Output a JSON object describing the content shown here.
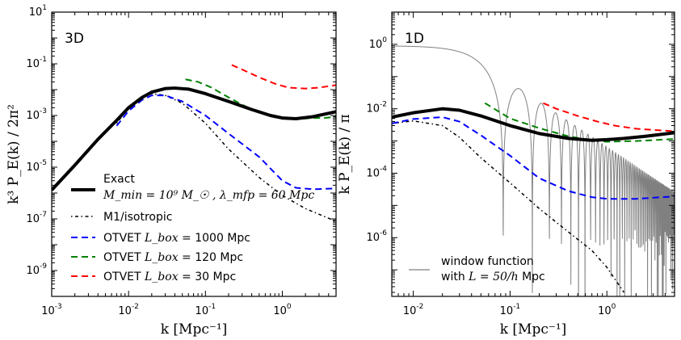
{
  "chart_data": [
    {
      "panel": "left",
      "type": "line",
      "panel_label": "3D",
      "xscale": "log",
      "yscale": "log",
      "xlim": [
        0.001,
        5
      ],
      "ylim": [
        1e-10,
        10
      ],
      "xlabel": "k [Mpc⁻¹]",
      "ylabel": "k³ P_E(k) / 2π²",
      "xticks": [
        {
          "v": 0.001,
          "b": "10",
          "e": "-3"
        },
        {
          "v": 0.01,
          "b": "10",
          "e": "-2"
        },
        {
          "v": 0.1,
          "b": "10",
          "e": "-1"
        },
        {
          "v": 1,
          "b": "10",
          "e": "0"
        }
      ],
      "yticks": [
        {
          "v": 1e-09,
          "b": "10",
          "e": "-9"
        },
        {
          "v": 1e-07,
          "b": "10",
          "e": "-7"
        },
        {
          "v": 1e-05,
          "b": "10",
          "e": "-5"
        },
        {
          "v": 0.001,
          "b": "10",
          "e": "-3"
        },
        {
          "v": 0.1,
          "b": "10",
          "e": "-1"
        },
        {
          "v": 10,
          "b": "10",
          "e": "1"
        }
      ],
      "series": [
        {
          "name": "Exact",
          "color": "#000000",
          "dash": "",
          "width": 4,
          "x": [
            0.001,
            0.002,
            0.004,
            0.007,
            0.01,
            0.015,
            0.02,
            0.03,
            0.04,
            0.06,
            0.1,
            0.2,
            0.4,
            0.7,
            1.0,
            1.5,
            2.5,
            5.0
          ],
          "y": [
            1.3e-06,
            1.2e-05,
            0.00012,
            0.00065,
            0.002,
            0.005,
            0.008,
            0.011,
            0.0115,
            0.0105,
            0.007,
            0.0035,
            0.0017,
            0.001,
            0.0008,
            0.00075,
            0.0009,
            0.0014
          ]
        },
        {
          "name": "M1/isotropic",
          "color": "#000000",
          "dash": "1.5,3.5,4,3.5",
          "width": 1.5,
          "x": [
            0.007,
            0.01,
            0.015,
            0.02,
            0.03,
            0.05,
            0.1,
            0.2,
            0.5,
            1.0,
            2.0,
            5.0
          ],
          "y": [
            0.0005,
            0.002,
            0.005,
            0.007,
            0.006,
            0.003,
            0.0005,
            5e-05,
            4e-06,
            8e-07,
            2.5e-07,
            8e-08
          ]
        },
        {
          "name": "OTVET L_box = 1000 Mpc",
          "color": "#0000ff",
          "dash": "8,5",
          "width": 2,
          "x": [
            0.007,
            0.01,
            0.015,
            0.02,
            0.03,
            0.05,
            0.1,
            0.2,
            0.5,
            1.0,
            1.5,
            2.5,
            5.0
          ],
          "y": [
            0.0004,
            0.0015,
            0.004,
            0.006,
            0.006,
            0.0035,
            0.001,
            0.0002,
            2.5e-05,
            3e-06,
            1.6e-06,
            1.4e-06,
            1.5e-06
          ]
        },
        {
          "name": "OTVET L_box = 120 Mpc",
          "color": "#008000",
          "dash": "8,5",
          "width": 2,
          "x": [
            0.055,
            0.08,
            0.12,
            0.2,
            0.3,
            0.5,
            0.8,
            1.2,
            1.8,
            2.5,
            3.5,
            5.0
          ],
          "y": [
            0.025,
            0.02,
            0.012,
            0.005,
            0.0026,
            0.0013,
            0.00085,
            0.00075,
            0.00075,
            0.0008,
            0.0008,
            0.0009
          ]
        },
        {
          "name": "OTVET L_box = 30 Mpc",
          "color": "#ff0000",
          "dash": "8,5",
          "width": 2,
          "x": [
            0.22,
            0.3,
            0.5,
            0.8,
            1.2,
            2.0,
            3.0,
            5.0
          ],
          "y": [
            0.09,
            0.06,
            0.03,
            0.017,
            0.012,
            0.011,
            0.012,
            0.015
          ]
        }
      ]
    },
    {
      "panel": "right",
      "type": "line",
      "panel_label": "1D",
      "xscale": "log",
      "yscale": "log",
      "xlim": [
        0.006,
        5
      ],
      "ylim": [
        1.5e-08,
        10
      ],
      "xlabel": "k [Mpc⁻¹]",
      "ylabel": "k P_E(k) / π",
      "xticks": [
        {
          "v": 0.01,
          "b": "10",
          "e": "-2"
        },
        {
          "v": 0.1,
          "b": "10",
          "e": "-1"
        },
        {
          "v": 1,
          "b": "10",
          "e": "0"
        }
      ],
      "yticks": [
        {
          "v": 1e-06,
          "b": "10",
          "e": "-6"
        },
        {
          "v": 0.0001,
          "b": "10",
          "e": "-4"
        },
        {
          "v": 0.01,
          "b": "10",
          "e": "-2"
        },
        {
          "v": 1,
          "b": "10",
          "e": "0"
        }
      ],
      "window_function": {
        "name": "window function with L = 50/h Mpc",
        "color": "#808080",
        "A": 0.9,
        "L": 74,
        "kmin": 0.006,
        "kmax": 5
      },
      "series": [
        {
          "name": "Exact",
          "color": "#000000",
          "dash": "",
          "width": 4,
          "x": [
            0.006,
            0.01,
            0.02,
            0.03,
            0.05,
            0.1,
            0.2,
            0.4,
            0.7,
            1.0,
            1.5,
            2.5,
            5.0
          ],
          "y": [
            0.0055,
            0.0075,
            0.01,
            0.009,
            0.006,
            0.003,
            0.0017,
            0.0012,
            0.00105,
            0.0011,
            0.0012,
            0.0014,
            0.0018
          ]
        },
        {
          "name": "M1/isotropic",
          "color": "#000000",
          "dash": "1.5,3.5,4,3.5",
          "width": 1.5,
          "x": [
            0.006,
            0.01,
            0.02,
            0.03,
            0.05,
            0.1,
            0.2,
            0.4,
            0.7,
            1.0,
            1.5
          ],
          "y": [
            0.0035,
            0.0042,
            0.003,
            0.0013,
            0.0003,
            5e-05,
            8e-06,
            1.5e-06,
            4e-07,
            1.2e-07,
            2e-08
          ]
        },
        {
          "name": "OTVET L_box = 1000 Mpc",
          "color": "#0000ff",
          "dash": "8,5",
          "width": 2,
          "x": [
            0.006,
            0.01,
            0.02,
            0.03,
            0.05,
            0.1,
            0.2,
            0.4,
            0.7,
            1.0,
            2.0,
            5.0
          ],
          "y": [
            0.0035,
            0.0048,
            0.0055,
            0.004,
            0.0015,
            0.00035,
            7e-05,
            2.8e-05,
            1.8e-05,
            1.6e-05,
            1.6e-05,
            1.9e-05
          ]
        },
        {
          "name": "OTVET L_box = 120 Mpc",
          "color": "#008000",
          "dash": "8,5",
          "width": 2,
          "x": [
            0.055,
            0.1,
            0.2,
            0.4,
            0.7,
            1.0,
            2.0,
            5.0
          ],
          "y": [
            0.015,
            0.005,
            0.0025,
            0.0014,
            0.00105,
            0.00095,
            0.001,
            0.00115
          ]
        },
        {
          "name": "OTVET L_box = 30 Mpc",
          "color": "#ff0000",
          "dash": "8,5",
          "width": 2,
          "x": [
            0.22,
            0.3,
            0.5,
            0.8,
            1.2,
            2.0,
            5.0
          ],
          "y": [
            0.015,
            0.01,
            0.006,
            0.004,
            0.003,
            0.0024,
            0.002
          ]
        }
      ]
    }
  ],
  "legend_left": {
    "exact_label": "Exact",
    "exact_params": "M_min = 10⁹ M_☉ , λ_mfp = 60 Mpc",
    "m1_label": "M1/isotropic",
    "otvet_prefix": "OTVET",
    "lbox_symbol": "L_box",
    "l1000": "= 1000 Mpc",
    "l120": "= 120 Mpc",
    "l30": "= 30 Mpc"
  },
  "legend_right": {
    "line1": "window function",
    "line2_prefix": "with",
    "line2_math": "L = 50/h",
    "line2_unit": "Mpc"
  }
}
